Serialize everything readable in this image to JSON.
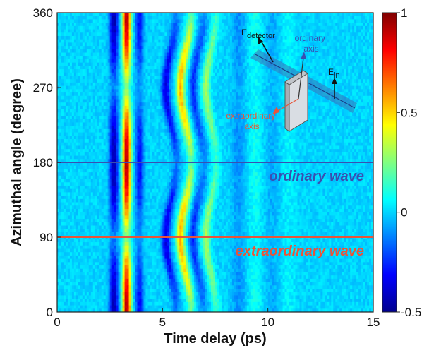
{
  "chart_data": {
    "type": "heatmap",
    "title": "",
    "xlabel": "Time delay (ps)",
    "ylabel": "Azimuthal angle (degree)",
    "xlim": [
      0,
      15
    ],
    "ylim": [
      0,
      360
    ],
    "x_ticks": [
      "0",
      "5",
      "10",
      "15"
    ],
    "y_ticks": [
      "0",
      "90",
      "180",
      "270",
      "360"
    ],
    "colorbar": {
      "range": [
        -0.5,
        1
      ],
      "tick_labels": [
        "1",
        "0.5",
        "0",
        "-0.5"
      ],
      "colormap": "jet",
      "colors": [
        "#00008f",
        "#0000ff",
        "#0080ff",
        "#00ffff",
        "#80ff80",
        "#ffff00",
        "#ff8000",
        "#ff0000",
        "#800000"
      ]
    },
    "oscillations": {
      "description_values": [
        {
          "t": 2.7,
          "amp": -0.45
        },
        {
          "t": 3.3,
          "amp": 0.95
        },
        {
          "t": 3.9,
          "amp": -0.3
        },
        {
          "t": 5.4,
          "amp": -0.35
        },
        {
          "t": 6.1,
          "amp": 0.55
        },
        {
          "t": 6.7,
          "amp": -0.25
        },
        {
          "t": 7.3,
          "amp": 0.3
        },
        {
          "t": 8.6,
          "amp": -0.1
        },
        {
          "t": 9.4,
          "amp": 0.08
        },
        {
          "t": 10.2,
          "amp": -0.06
        },
        {
          "t": 11.0,
          "amp": 0.05
        }
      ]
    },
    "reference_lines": [
      {
        "y": 180,
        "label": "ordinary wave",
        "color": "#3a4fb0"
      },
      {
        "y": 90,
        "label": "extraordinary wave",
        "color": "#e8553a"
      }
    ],
    "inset": {
      "e_detector": "E",
      "e_detector_sub": "detector",
      "ordinary_axis": [
        "ordinary",
        "axis"
      ],
      "e_in": "E",
      "e_in_sub": "in",
      "extraordinary_axis": [
        "extraordinary",
        "axis"
      ]
    }
  }
}
